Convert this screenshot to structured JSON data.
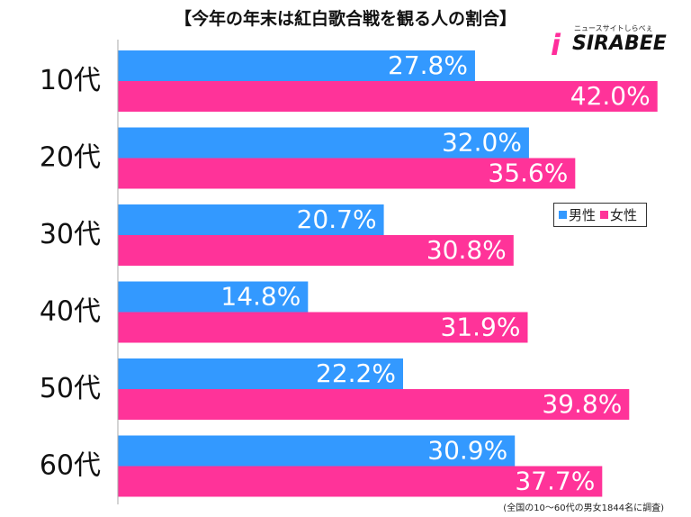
{
  "title": "【今年の年末は紅白歌合戦を観る人の割合】",
  "logo": {
    "main": "SIRABEE",
    "sub": "ニュースサイトしらべぇ",
    "accent": "#ff2d9b"
  },
  "footnote": "(全国の10〜60代の男女1844名に調査)",
  "chart_data": {
    "type": "bar",
    "orientation": "horizontal",
    "categories": [
      "10代",
      "20代",
      "30代",
      "40代",
      "50代",
      "60代"
    ],
    "series": [
      {
        "name": "男性",
        "color": "#3399ff",
        "values": [
          27.8,
          32.0,
          20.7,
          14.8,
          22.2,
          30.9
        ]
      },
      {
        "name": "女性",
        "color": "#ff3399",
        "values": [
          42.0,
          35.6,
          30.8,
          31.9,
          39.8,
          37.7
        ]
      }
    ],
    "value_labels": [
      [
        "27.8%",
        "32.0%",
        "20.7%",
        "14.8%",
        "22.2%",
        "30.9%"
      ],
      [
        "42.0%",
        "35.6%",
        "30.8%",
        "31.9%",
        "39.8%",
        "37.7%"
      ]
    ],
    "xlim": [
      0,
      42.3
    ],
    "legend_position": "right",
    "grid": false
  }
}
